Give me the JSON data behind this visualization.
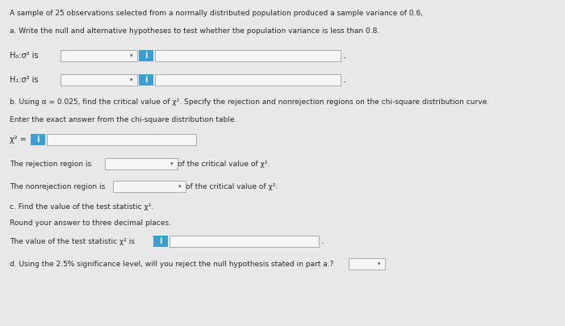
{
  "bg_color": "#e8e8e8",
  "title_text": "A sample of 25 observations selected from a normally distributed population produced a sample variance of 0.6,",
  "part_a_label": "a. Write the null and alternative hypotheses to test whether the population variance is less than 0.8.",
  "h0_text": "H₀:σ² is",
  "h1_text": "H₁:σ² is",
  "part_b_label": "b. Using α = 0.025, find the critical value of χ². Specify the rejection and nonrejection regions on the chi-square distribution curve.",
  "part_b2_label": "Enter the exact answer from the chi-square distribution table.",
  "chi_sq_eq": "χ² =",
  "rejection_text": "The rejection region is",
  "rejection_text2": "of the critical value of χ².",
  "nonrejection_text": "The nonrejection region is",
  "nonrejection_text2": "of the critical value of χ².",
  "part_c_label": "c. Find the value of the test statistic χ².",
  "part_c2_label": "Round your answer to three decimal places.",
  "test_stat_text": "The value of the test statistic χ² is",
  "part_d_label": "d. Using the 2.5% significance level, will you reject the null hypothesis stated in part a.?",
  "box_color": "#f0f0f0",
  "box_border": "#aaaaaa",
  "info_bg": "#3a9fd1",
  "info_color": "#ffffff",
  "text_color": "#2a2a2a",
  "font_size": 6.5,
  "title_font_size": 6.5
}
